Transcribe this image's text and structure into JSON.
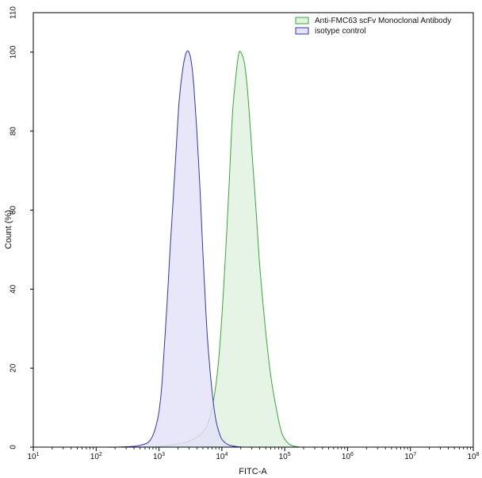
{
  "chart_data": {
    "type": "area",
    "xlabel": "FITC-A",
    "ylabel": "Count (%)",
    "xscale": "log",
    "xlim": [
      10,
      100000000
    ],
    "ylim": [
      0,
      110
    ],
    "xticks": [
      {
        "value": 10,
        "base": "10",
        "exp": "1"
      },
      {
        "value": 100,
        "base": "10",
        "exp": "2"
      },
      {
        "value": 1000,
        "base": "10",
        "exp": "3"
      },
      {
        "value": 10000,
        "base": "10",
        "exp": "4"
      },
      {
        "value": 100000,
        "base": "10",
        "exp": "5"
      },
      {
        "value": 1000000,
        "base": "10",
        "exp": "6"
      },
      {
        "value": 10000000,
        "base": "10",
        "exp": "7"
      },
      {
        "value": 100000000,
        "base": "10",
        "exp": "8"
      }
    ],
    "yticks": [
      "0",
      "20",
      "40",
      "60",
      "80",
      "100"
    ],
    "ytick_values": [
      0,
      20,
      40,
      60,
      80,
      100
    ],
    "ytick_edge_label": "110",
    "legend_position": "top-right",
    "series": [
      {
        "name": "Anti-FMC63 scFv Monoclonal Antibody",
        "stroke": "#38a838",
        "fill": "#dff1df",
        "x": [
          10,
          100,
          600,
          1000,
          1500,
          2000,
          3000,
          4000,
          5000,
          6000,
          7000,
          8000,
          9000,
          10000,
          11000,
          12000,
          13000,
          14000,
          15000,
          17000,
          18500,
          20000,
          23000,
          26000,
          30000,
          35000,
          40000,
          50000,
          60000,
          75000,
          90000,
          110000,
          130000,
          160000,
          300000,
          100000000
        ],
        "y": [
          0,
          0,
          0,
          0.2,
          0.5,
          0.8,
          1.5,
          2.5,
          3.8,
          6,
          10,
          15.5,
          23,
          33,
          44,
          55,
          66,
          77,
          86,
          95,
          99.5,
          100,
          97,
          89,
          75,
          60,
          46,
          29,
          18,
          9,
          3.5,
          1.2,
          0.4,
          0.1,
          0,
          0
        ]
      },
      {
        "name": "isotype control",
        "stroke": "#3434b4",
        "fill": "#e2e2f8",
        "x": [
          10,
          100,
          200,
          400,
          600,
          700,
          800,
          900,
          1000,
          1100,
          1200,
          1350,
          1500,
          1700,
          1900,
          2100,
          2400,
          2700,
          3000,
          3300,
          3600,
          4000,
          4500,
          5000,
          5500,
          6000,
          7000,
          8000,
          9000,
          10000,
          12000,
          14000,
          17000,
          20000,
          30000,
          100000000
        ],
        "y": [
          0,
          0,
          0,
          0.2,
          0.8,
          1.5,
          3,
          5.5,
          9,
          15,
          24,
          37,
          50,
          64,
          77,
          88,
          96,
          99.8,
          100,
          97,
          91,
          80,
          65,
          49,
          36,
          26,
          14,
          7,
          3.8,
          2,
          0.8,
          0.4,
          0.15,
          0.05,
          0,
          0
        ]
      }
    ]
  }
}
